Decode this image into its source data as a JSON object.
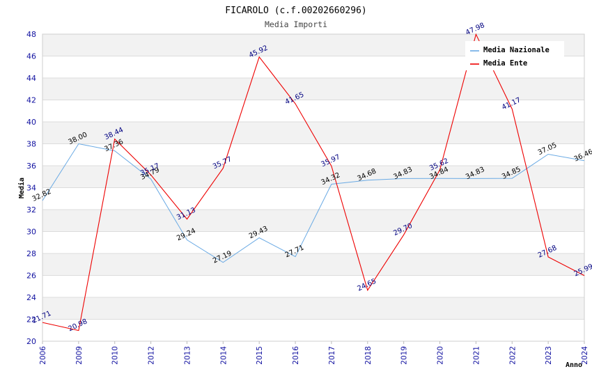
{
  "chart_data": {
    "type": "line",
    "title": "FICAROLO (c.f.00202660296)",
    "subtitle": "Media Importi",
    "xlabel": "Anno",
    "ylabel": "Media",
    "ylim": [
      20,
      48
    ],
    "yticks": [
      20,
      22,
      24,
      26,
      28,
      30,
      32,
      34,
      36,
      38,
      40,
      42,
      44,
      46,
      48
    ],
    "categories": [
      "2006",
      "2009",
      "2010",
      "2012",
      "2013",
      "2014",
      "2015",
      "2016",
      "2017",
      "2018",
      "2019",
      "2020",
      "2021",
      "2022",
      "2023",
      "2024"
    ],
    "legend_position": "top-right",
    "series": [
      {
        "name": "Media Nazionale",
        "color": "#6aaae4",
        "values": [
          32.82,
          38.0,
          37.36,
          34.79,
          29.24,
          27.19,
          29.43,
          27.71,
          34.32,
          34.68,
          34.83,
          34.84,
          34.83,
          34.85,
          37.05,
          36.46
        ],
        "labels": [
          "32.82",
          "38.00",
          "37.36",
          "34.79",
          "29.24",
          "27.19",
          "29.43",
          "27.71",
          "34.32",
          "34.68",
          "34.83",
          "34.84",
          "34.83",
          "34.85",
          "37.05",
          "36.46"
        ]
      },
      {
        "name": "Media Ente",
        "color": "#ee0000",
        "values": [
          21.71,
          20.98,
          38.44,
          35.17,
          31.13,
          35.77,
          45.92,
          41.65,
          35.97,
          24.65,
          29.7,
          35.62,
          47.98,
          41.17,
          27.68,
          25.99
        ],
        "labels": [
          "21.71",
          "20.98",
          "38.44",
          "35.17",
          "31.13",
          "35.77",
          "45.92",
          "41.65",
          "35.97",
          "24.65",
          "29.70",
          "35.62",
          "47.98",
          "41.17",
          "27.68",
          "25.99"
        ]
      }
    ]
  }
}
